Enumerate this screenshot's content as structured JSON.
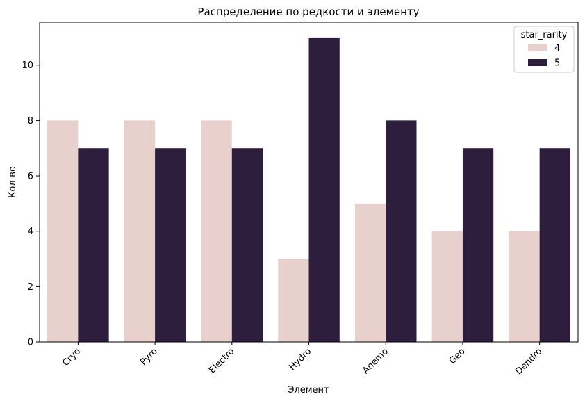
{
  "chart_data": {
    "type": "bar",
    "title": "Распределение по редкости и элементу",
    "xlabel": "Элемент",
    "ylabel": "Кол-во",
    "categories": [
      "Cryo",
      "Pyro",
      "Electro",
      "Hydro",
      "Anemo",
      "Geo",
      "Dendro"
    ],
    "series": [
      {
        "name": "4",
        "values": [
          8,
          8,
          8,
          3,
          5,
          4,
          4
        ],
        "color": "#e8d1cd"
      },
      {
        "name": "5",
        "values": [
          7,
          7,
          7,
          11,
          8,
          7,
          7
        ],
        "color": "#2d1e3e"
      }
    ],
    "ylim": [
      0,
      11.55
    ],
    "yticks": [
      0,
      2,
      4,
      6,
      8,
      10
    ],
    "legend": {
      "title": "star_rarity",
      "placement": "top-right"
    },
    "grid": false
  }
}
